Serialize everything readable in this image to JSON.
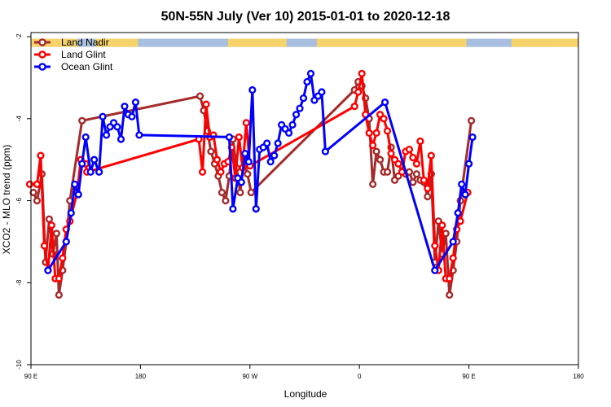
{
  "chart_data": {
    "type": "line",
    "title": "50N-55N July (Ver 10)   2015-01-01 to 2020-12-18",
    "xlabel": "Longitude",
    "ylabel": "XCO2 - MLO trend (ppm)",
    "xlim": [
      90,
      450
    ],
    "ylim": [
      -10,
      -1.9
    ],
    "x_ticks": [
      {
        "value": 90,
        "label": "90 E"
      },
      {
        "value": 180,
        "label": "180"
      },
      {
        "value": 270,
        "label": "90 W"
      },
      {
        "value": 360,
        "label": "0"
      },
      {
        "value": 450,
        "label": "90 E"
      },
      {
        "value": 540,
        "label": "180"
      }
    ],
    "y_ticks": [
      {
        "value": -2,
        "label": "-2"
      },
      {
        "value": -4,
        "label": "-4"
      },
      {
        "value": -6,
        "label": "-6"
      },
      {
        "value": -8,
        "label": "-8"
      },
      {
        "value": -10,
        "label": "-10"
      }
    ],
    "x_display_range": [
      90,
      540
    ],
    "legend_position": "top-left",
    "grid": false,
    "landmask_strip": {
      "y_range": [
        -2.05,
        -2.25
      ],
      "land_color": "#f6d36b",
      "ocean_color": "#a8bfdf"
    },
    "series": [
      {
        "name": "Land Nadir",
        "color": "#a52a2a",
        "points": [
          [
            92,
            -5.8
          ],
          [
            95,
            -6.0
          ],
          [
            99,
            -5.35
          ],
          [
            102,
            -7.5
          ],
          [
            105,
            -6.45
          ],
          [
            108,
            -7.3
          ],
          [
            111,
            -6.8
          ],
          [
            113,
            -8.3
          ],
          [
            116,
            -7.7
          ],
          [
            119,
            -7.0
          ],
          [
            122,
            -6.0
          ],
          [
            132,
            -4.05
          ],
          [
            229,
            -3.45
          ],
          [
            232,
            -3.8
          ],
          [
            235,
            -4.3
          ],
          [
            238,
            -4.8
          ],
          [
            241,
            -5.1
          ],
          [
            244,
            -5.4
          ],
          [
            247,
            -5.8
          ],
          [
            250,
            -6.0
          ],
          [
            253,
            -5.4
          ],
          [
            256,
            -4.5
          ],
          [
            259,
            -5.2
          ],
          [
            262,
            -5.8
          ],
          [
            265,
            -5.0
          ],
          [
            268,
            -5.35
          ],
          [
            271,
            -5.8
          ],
          [
            356,
            -3.3
          ],
          [
            359,
            -3.1
          ],
          [
            362,
            -3.2
          ],
          [
            365,
            -3.5
          ],
          [
            368,
            -4.0
          ],
          [
            371,
            -5.6
          ],
          [
            374,
            -4.8
          ],
          [
            377,
            -5.0
          ],
          [
            380,
            -5.3
          ],
          [
            383,
            -5.3
          ],
          [
            386,
            -4.7
          ],
          [
            389,
            -5.5
          ],
          [
            392,
            -5.4
          ],
          [
            395,
            -5.3
          ],
          [
            398,
            -5.35
          ],
          [
            401,
            -5.3
          ],
          [
            404,
            -5.55
          ],
          [
            407,
            -5.35
          ],
          [
            410,
            -5.5
          ],
          [
            413,
            -5.55
          ],
          [
            416,
            -5.9
          ],
          [
            419,
            -5.35
          ],
          [
            422,
            -7.5
          ],
          [
            425,
            -6.5
          ],
          [
            428,
            -7.3
          ],
          [
            431,
            -6.8
          ],
          [
            434,
            -8.3
          ],
          [
            437,
            -7.7
          ],
          [
            440,
            -7.0
          ],
          [
            443,
            -6.0
          ],
          [
            452,
            -4.05
          ]
        ]
      },
      {
        "name": "Land Glint",
        "color": "#ff0000",
        "points": [
          [
            89,
            -5.6
          ],
          [
            95,
            -5.6
          ],
          [
            98,
            -4.9
          ],
          [
            101,
            -7.1
          ],
          [
            104,
            -7.7
          ],
          [
            107,
            -6.6
          ],
          [
            110,
            -7.9
          ],
          [
            113,
            -7.9
          ],
          [
            116,
            -7.4
          ],
          [
            119,
            -6.7
          ],
          [
            122,
            -6.5
          ],
          [
            128,
            -5.8
          ],
          [
            131,
            -5.0
          ],
          [
            135,
            -5.1
          ],
          [
            136,
            -5.3
          ],
          [
            228,
            -4.5
          ],
          [
            231,
            -5.3
          ],
          [
            234,
            -3.65
          ],
          [
            237,
            -4.45
          ],
          [
            240,
            -4.4
          ],
          [
            243,
            -5.0
          ],
          [
            246,
            -5.3
          ],
          [
            249,
            -5.1
          ],
          [
            252,
            -5.05
          ],
          [
            255,
            -4.7
          ],
          [
            258,
            -5.45
          ],
          [
            261,
            -4.45
          ],
          [
            264,
            -5.2
          ],
          [
            267,
            -4.1
          ],
          [
            270,
            -5.15
          ],
          [
            356,
            -3.7
          ],
          [
            359,
            -3.35
          ],
          [
            362,
            -2.9
          ],
          [
            365,
            -3.9
          ],
          [
            368,
            -4.35
          ],
          [
            371,
            -4.65
          ],
          [
            374,
            -4.35
          ],
          [
            377,
            -3.9
          ],
          [
            380,
            -4.0
          ],
          [
            383,
            -4.3
          ],
          [
            386,
            -4.85
          ],
          [
            389,
            -5.0
          ],
          [
            392,
            -5.1
          ],
          [
            395,
            -5.3
          ],
          [
            398,
            -4.8
          ],
          [
            401,
            -4.75
          ],
          [
            404,
            -4.95
          ],
          [
            407,
            -5.1
          ],
          [
            410,
            -4.55
          ],
          [
            413,
            -5.5
          ],
          [
            416,
            -5.7
          ],
          [
            419,
            -4.9
          ],
          [
            422,
            -7.1
          ],
          [
            425,
            -7.7
          ],
          [
            428,
            -6.6
          ],
          [
            431,
            -7.9
          ],
          [
            434,
            -7.9
          ],
          [
            437,
            -7.4
          ],
          [
            440,
            -6.7
          ],
          [
            443,
            -6.5
          ],
          [
            449,
            -5.8
          ]
        ]
      },
      {
        "name": "Ocean Glint",
        "color": "#0000ff",
        "points": [
          [
            104,
            -7.7
          ],
          [
            119,
            -7.0
          ],
          [
            123,
            -6.3
          ],
          [
            126,
            -5.6
          ],
          [
            129,
            -5.85
          ],
          [
            132,
            -5.1
          ],
          [
            135,
            -4.45
          ],
          [
            139,
            -5.3
          ],
          [
            142,
            -5.0
          ],
          [
            146,
            -5.3
          ],
          [
            149,
            -3.95
          ],
          [
            152,
            -4.4
          ],
          [
            155,
            -4.2
          ],
          [
            158,
            -4.1
          ],
          [
            161,
            -4.2
          ],
          [
            164,
            -4.5
          ],
          [
            167,
            -3.7
          ],
          [
            170,
            -3.9
          ],
          [
            173,
            -3.95
          ],
          [
            176,
            -3.6
          ],
          [
            179,
            -4.4
          ],
          [
            253,
            -4.45
          ],
          [
            256,
            -6.2
          ],
          [
            260,
            -5.45
          ],
          [
            263,
            -5.55
          ],
          [
            266,
            -4.85
          ],
          [
            269,
            -5.05
          ],
          [
            272,
            -3.3
          ],
          [
            275,
            -6.2
          ],
          [
            278,
            -4.75
          ],
          [
            281,
            -4.7
          ],
          [
            284,
            -4.6
          ],
          [
            287,
            -5.05
          ],
          [
            290,
            -4.9
          ],
          [
            293,
            -4.6
          ],
          [
            296,
            -4.15
          ],
          [
            299,
            -4.25
          ],
          [
            302,
            -4.35
          ],
          [
            305,
            -4.15
          ],
          [
            308,
            -3.9
          ],
          [
            311,
            -3.75
          ],
          [
            314,
            -3.5
          ],
          [
            317,
            -3.1
          ],
          [
            320,
            -2.9
          ],
          [
            323,
            -3.55
          ],
          [
            326,
            -3.45
          ],
          [
            329,
            -3.35
          ],
          [
            332,
            -4.8
          ],
          [
            381,
            -3.6
          ],
          [
            422,
            -7.7
          ],
          [
            437,
            -7.0
          ],
          [
            441,
            -6.3
          ],
          [
            444,
            -5.6
          ],
          [
            447,
            -5.85
          ],
          [
            450,
            -5.1
          ],
          [
            453,
            -4.45
          ]
        ]
      }
    ]
  }
}
